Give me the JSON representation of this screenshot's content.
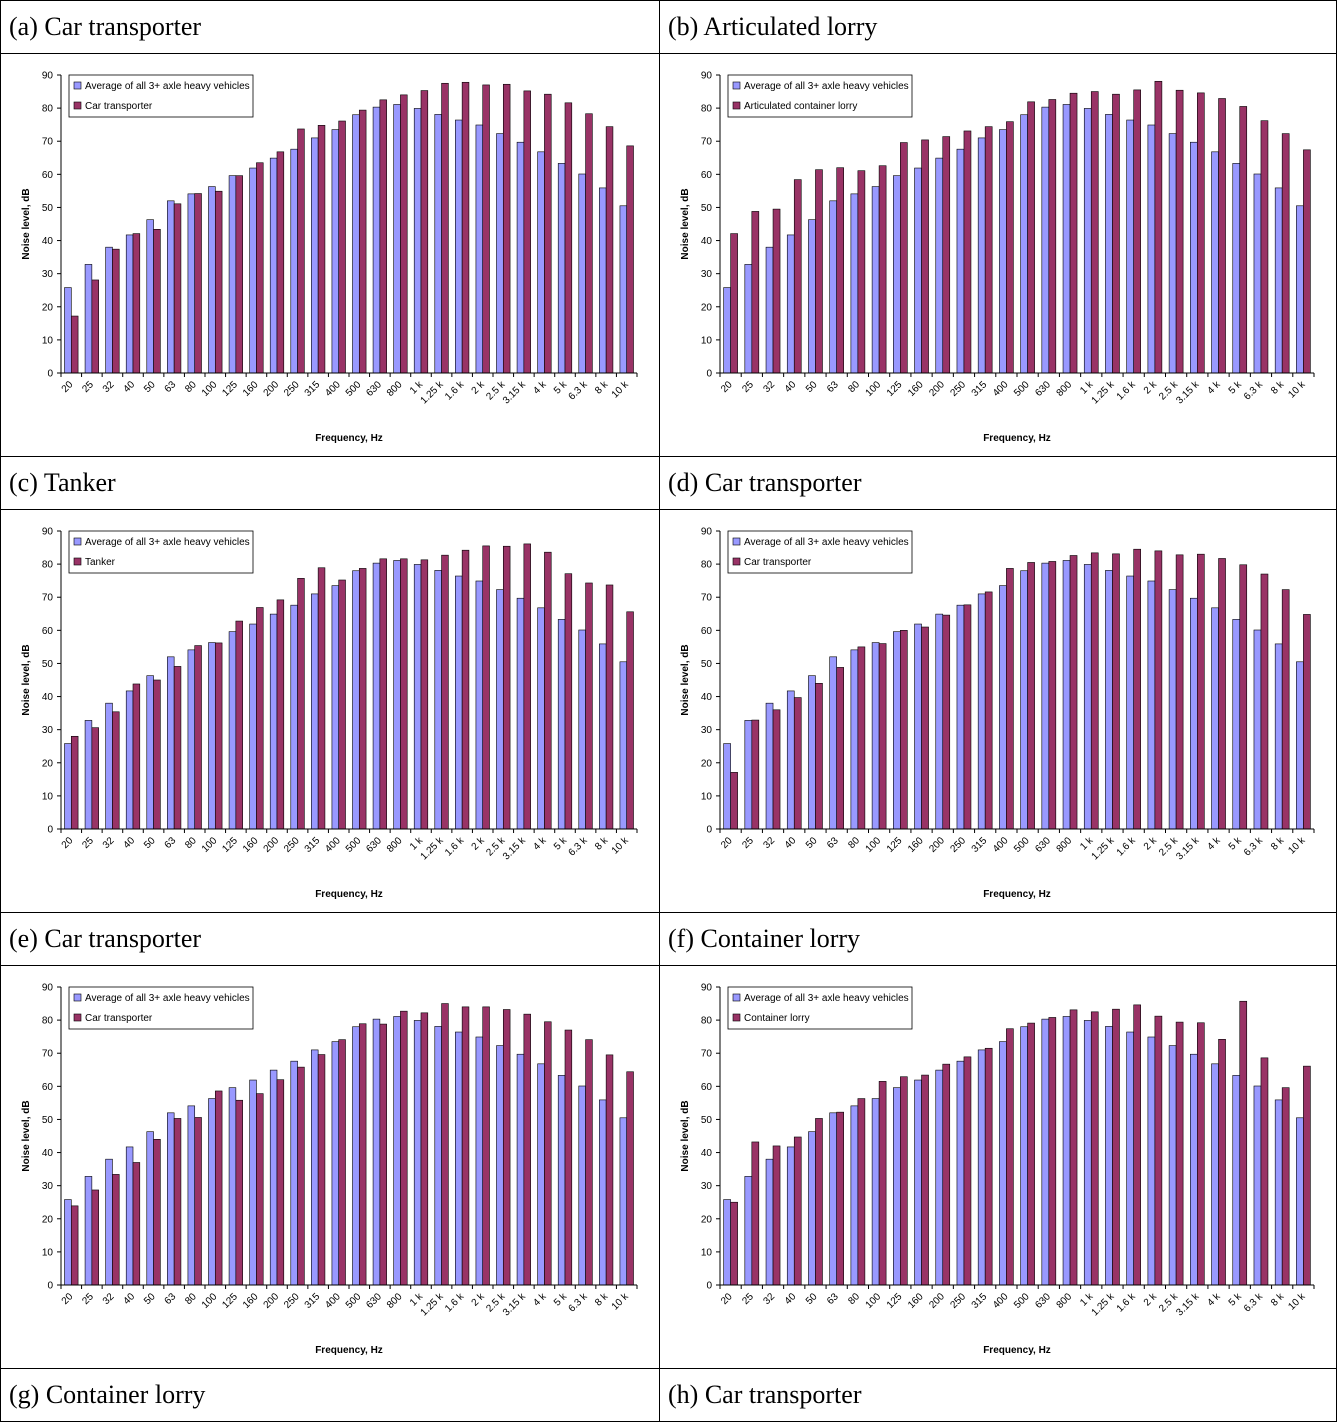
{
  "panels": [
    {
      "caption": "(a) Car transporter",
      "chart_index": 0
    },
    {
      "caption": "(b) Articulated lorry",
      "chart_index": 1
    },
    {
      "caption": "(c) Tanker",
      "chart_index": 2
    },
    {
      "caption": "(d) Car transporter",
      "chart_index": 3
    },
    {
      "caption": "(e) Car transporter",
      "chart_index": 4
    },
    {
      "caption": "(f) Container lorry",
      "chart_index": 5
    },
    {
      "caption": "(g) Container lorry",
      "chart_index": null
    },
    {
      "caption": "(h) Car transporter",
      "chart_index": null
    }
  ],
  "colors": {
    "average": "#9999ff",
    "vehicle": "#993366"
  },
  "chart_data": [
    {
      "type": "bar",
      "xlabel": "Frequency, Hz",
      "ylabel": "Noise level, dB",
      "ylim": [
        0,
        90
      ],
      "yticks": [
        0,
        10,
        20,
        30,
        40,
        50,
        60,
        70,
        80,
        90
      ],
      "legend": "top-left",
      "categories": [
        "20",
        "25",
        "32",
        "40",
        "50",
        "63",
        "80",
        "100",
        "125",
        "160",
        "200",
        "250",
        "315",
        "400",
        "500",
        "630",
        "800",
        "1 k",
        "1.25 k",
        "1.6 k",
        "2 k",
        "2.5 k",
        "3.15 k",
        "4 k",
        "5 k",
        "6.3 k",
        "8 k",
        "10 k"
      ],
      "series": [
        {
          "name": "Average of all 3+ axle heavy vehicles",
          "values": [
            25.8,
            32.8,
            38.0,
            41.7,
            46.3,
            52.0,
            54.1,
            56.3,
            59.6,
            61.9,
            64.9,
            67.6,
            71.0,
            73.5,
            78.0,
            80.3,
            81.1,
            79.9,
            78.1,
            76.4,
            74.9,
            72.3,
            69.7,
            66.8,
            63.3,
            60.1,
            55.9,
            50.5
          ]
        },
        {
          "name": "Car transporter",
          "values": [
            17.2,
            28.1,
            37.4,
            42.1,
            43.4,
            51.1,
            54.2,
            54.9,
            59.6,
            63.5,
            66.8,
            73.7,
            74.8,
            76.1,
            79.4,
            82.5,
            84.0,
            85.3,
            87.5,
            87.8,
            87.0,
            87.2,
            85.2,
            84.2,
            81.6,
            78.3,
            74.4,
            68.6
          ]
        }
      ]
    },
    {
      "type": "bar",
      "xlabel": "Frequency, Hz",
      "ylabel": "Noise level, dB",
      "ylim": [
        0,
        90
      ],
      "yticks": [
        0,
        10,
        20,
        30,
        40,
        50,
        60,
        70,
        80,
        90
      ],
      "legend": "top-left",
      "categories": [
        "20",
        "25",
        "32",
        "40",
        "50",
        "63",
        "80",
        "100",
        "125",
        "160",
        "200",
        "250",
        "315",
        "400",
        "500",
        "630",
        "800",
        "1 k",
        "1.25 k",
        "1.6 k",
        "2 k",
        "2.5 k",
        "3.15 k",
        "4 k",
        "5 k",
        "6.3 k",
        "8 k",
        "10 k"
      ],
      "series": [
        {
          "name": "Average of all 3+ axle heavy vehicles",
          "values": [
            25.8,
            32.8,
            38.0,
            41.7,
            46.3,
            52.0,
            54.1,
            56.3,
            59.6,
            61.9,
            64.9,
            67.6,
            71.0,
            73.5,
            78.0,
            80.3,
            81.1,
            79.9,
            78.1,
            76.4,
            74.9,
            72.3,
            69.7,
            66.8,
            63.3,
            60.1,
            55.9,
            50.5
          ]
        },
        {
          "name": "Articulated container lorry",
          "values": [
            42.1,
            48.8,
            49.5,
            58.4,
            61.4,
            62.0,
            61.1,
            62.6,
            69.6,
            70.4,
            71.4,
            73.1,
            74.4,
            75.9,
            81.9,
            82.6,
            84.5,
            85.0,
            84.2,
            85.5,
            88.1,
            85.4,
            84.6,
            82.9,
            80.5,
            76.2,
            72.3,
            67.4
          ]
        }
      ]
    },
    {
      "type": "bar",
      "xlabel": "Frequency, Hz",
      "ylabel": "Noise level, dB",
      "ylim": [
        0,
        90
      ],
      "yticks": [
        0,
        10,
        20,
        30,
        40,
        50,
        60,
        70,
        80,
        90
      ],
      "legend": "top-left",
      "categories": [
        "20",
        "25",
        "32",
        "40",
        "50",
        "63",
        "80",
        "100",
        "125",
        "160",
        "200",
        "250",
        "315",
        "400",
        "500",
        "630",
        "800",
        "1 k",
        "1.25 k",
        "1.6 k",
        "2 k",
        "2.5 k",
        "3.15 k",
        "4 k",
        "5 k",
        "6.3 k",
        "8 k",
        "10 k"
      ],
      "series": [
        {
          "name": "Average of all 3+ axle heavy vehicles",
          "values": [
            25.8,
            32.8,
            38.0,
            41.7,
            46.3,
            52.0,
            54.1,
            56.3,
            59.6,
            61.9,
            64.9,
            67.6,
            71.0,
            73.5,
            78.0,
            80.3,
            81.1,
            79.9,
            78.1,
            76.4,
            74.9,
            72.3,
            69.7,
            66.8,
            63.3,
            60.1,
            55.9,
            50.5
          ]
        },
        {
          "name": "Tanker",
          "values": [
            28.0,
            30.6,
            35.4,
            43.8,
            45.0,
            49.1,
            55.4,
            56.2,
            62.8,
            66.9,
            69.2,
            75.7,
            78.9,
            75.2,
            78.7,
            81.6,
            81.6,
            81.3,
            82.7,
            84.2,
            85.5,
            85.4,
            86.1,
            83.6,
            77.1,
            74.3,
            73.7,
            65.6
          ]
        }
      ]
    },
    {
      "type": "bar",
      "xlabel": "Frequency, Hz",
      "ylabel": "Noise level, dB",
      "ylim": [
        0,
        90
      ],
      "yticks": [
        0,
        10,
        20,
        30,
        40,
        50,
        60,
        70,
        80,
        90
      ],
      "legend": "top-left",
      "categories": [
        "20",
        "25",
        "32",
        "40",
        "50",
        "63",
        "80",
        "100",
        "125",
        "160",
        "200",
        "250",
        "315",
        "400",
        "500",
        "630",
        "800",
        "1 k",
        "1.25 k",
        "1.6 k",
        "2 k",
        "2.5 k",
        "3.15 k",
        "4 k",
        "5 k",
        "6.3 k",
        "8 k",
        "10 k"
      ],
      "series": [
        {
          "name": "Average of all 3+ axle heavy vehicles",
          "values": [
            25.8,
            32.8,
            38.0,
            41.7,
            46.3,
            52.0,
            54.1,
            56.3,
            59.6,
            61.9,
            64.9,
            67.6,
            71.0,
            73.5,
            78.0,
            80.3,
            81.1,
            79.9,
            78.1,
            76.4,
            74.9,
            72.3,
            69.7,
            66.8,
            63.3,
            60.1,
            55.9,
            50.5
          ]
        },
        {
          "name": "Car transporter",
          "values": [
            17.1,
            32.9,
            36.0,
            39.7,
            44.0,
            48.8,
            55.0,
            56.0,
            60.0,
            61.0,
            64.6,
            67.7,
            71.6,
            78.7,
            80.5,
            80.8,
            82.6,
            83.4,
            83.1,
            84.5,
            84.0,
            82.8,
            83.0,
            81.7,
            79.8,
            77.0,
            72.3,
            64.8
          ]
        }
      ]
    },
    {
      "type": "bar",
      "xlabel": "Frequency, Hz",
      "ylabel": "Noise level, dB",
      "ylim": [
        0,
        90
      ],
      "yticks": [
        0,
        10,
        20,
        30,
        40,
        50,
        60,
        70,
        80,
        90
      ],
      "legend": "top-left",
      "categories": [
        "20",
        "25",
        "32",
        "40",
        "50",
        "63",
        "80",
        "100",
        "125",
        "160",
        "200",
        "250",
        "315",
        "400",
        "500",
        "630",
        "800",
        "1 k",
        "1.25 k",
        "1.6 k",
        "2 k",
        "2.5 k",
        "3.15 k",
        "4 k",
        "5 k",
        "6.3 k",
        "8 k",
        "10 k"
      ],
      "series": [
        {
          "name": "Average of all 3+ axle heavy vehicles",
          "values": [
            25.8,
            32.8,
            38.0,
            41.7,
            46.3,
            52.0,
            54.1,
            56.3,
            59.6,
            61.9,
            64.9,
            67.6,
            71.0,
            73.5,
            78.0,
            80.3,
            81.1,
            79.9,
            78.1,
            76.4,
            74.9,
            72.3,
            69.7,
            66.8,
            63.3,
            60.1,
            55.9,
            50.5
          ]
        },
        {
          "name": "Car transporter",
          "values": [
            23.9,
            28.7,
            33.4,
            37.0,
            44.0,
            50.3,
            50.6,
            58.6,
            55.8,
            57.8,
            62.0,
            65.8,
            69.6,
            74.1,
            78.9,
            78.8,
            82.7,
            82.2,
            85.0,
            84.0,
            84.0,
            83.2,
            81.8,
            79.5,
            77.0,
            74.1,
            69.5,
            64.4
          ]
        }
      ]
    },
    {
      "type": "bar",
      "xlabel": "Frequency, Hz",
      "ylabel": "Noise level, dB",
      "ylim": [
        0,
        90
      ],
      "yticks": [
        0,
        10,
        20,
        30,
        40,
        50,
        60,
        70,
        80,
        90
      ],
      "legend": "top-left",
      "categories": [
        "20",
        "25",
        "32",
        "40",
        "50",
        "63",
        "80",
        "100",
        "125",
        "160",
        "200",
        "250",
        "315",
        "400",
        "500",
        "630",
        "800",
        "1 k",
        "1.25 k",
        "1.6 k",
        "2 k",
        "2.5 k",
        "3.15 k",
        "4 k",
        "5 k",
        "6.3 k",
        "8 k",
        "10 k"
      ],
      "series": [
        {
          "name": "Average of all 3+ axle heavy vehicles",
          "values": [
            25.8,
            32.8,
            38.0,
            41.7,
            46.3,
            52.0,
            54.1,
            56.3,
            59.6,
            61.9,
            64.9,
            67.6,
            71.0,
            73.5,
            78.0,
            80.3,
            81.1,
            79.9,
            78.1,
            76.4,
            74.9,
            72.3,
            69.7,
            66.8,
            63.3,
            60.1,
            55.9,
            50.5
          ]
        },
        {
          "name": "Container lorry",
          "values": [
            25.0,
            43.2,
            42.0,
            44.7,
            50.3,
            52.2,
            56.3,
            61.5,
            62.9,
            63.4,
            66.7,
            68.9,
            71.5,
            77.4,
            79.1,
            80.8,
            83.1,
            82.5,
            83.3,
            84.6,
            81.2,
            79.4,
            79.2,
            74.2,
            85.7,
            68.6,
            59.6,
            66.1
          ]
        }
      ]
    }
  ]
}
